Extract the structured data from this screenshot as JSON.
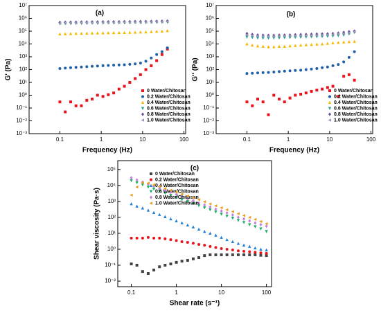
{
  "chart_data": [
    {
      "type": "scatter",
      "title": "(a)",
      "x_label": "Frequency (Hz)",
      "y_label": "G' (Pa)",
      "log_x": true,
      "log_y": true,
      "legend": "lower right",
      "xlim": [
        0.018,
        110
      ],
      "xticks": [
        0.1,
        1,
        10,
        100
      ],
      "ylim": [
        0.001,
        10000000
      ],
      "yticks": [
        {
          "value": 0.001,
          "label": "10⁻³"
        },
        {
          "value": 0.01,
          "label": "10⁻²"
        },
        {
          "value": 0.1,
          "label": "10⁻¹"
        },
        {
          "value": 1,
          "label": "10⁰"
        },
        {
          "value": 10,
          "label": "10¹"
        },
        {
          "value": 100,
          "label": "10²"
        },
        {
          "value": 1000,
          "label": "10³"
        },
        {
          "value": 10000,
          "label": "10⁴"
        },
        {
          "value": 100000,
          "label": "10⁵"
        },
        {
          "value": 1000000,
          "label": "10⁶"
        },
        {
          "value": 10000000,
          "label": "10⁷"
        }
      ],
      "x": [
        0.1,
        0.135,
        0.182,
        0.245,
        0.331,
        0.447,
        0.603,
        0.813,
        1.1,
        1.48,
        2,
        2.69,
        3.63,
        4.9,
        6.61,
        8.91,
        12,
        16.2,
        21.9,
        29.5,
        39.8
      ],
      "series": [
        {
          "name": "0 Water/Chitosan",
          "color": "#e8141b",
          "marker": "square",
          "values": [
            0.3,
            0.05,
            0.3,
            0.15,
            0.15,
            0.4,
            0.5,
            1,
            0.8,
            1.1,
            1.5,
            3,
            5,
            10,
            20,
            40,
            100,
            200,
            500,
            1500,
            4000
          ]
        },
        {
          "name": "0.2 Water/Chitosan",
          "color": "#1f5fa8",
          "marker": "circle",
          "values": [
            120,
            130,
            140,
            150,
            160,
            170,
            180,
            190,
            200,
            210,
            220,
            230,
            240,
            260,
            280,
            320,
            450,
            800,
            1500,
            2500,
            5000
          ]
        },
        {
          "name": "0.4 Water/Chitosan",
          "color": "#f5b800",
          "marker": "triangle-up",
          "values": [
            60000,
            62000,
            64000,
            66000,
            67000,
            68000,
            70000,
            71000,
            72000,
            74000,
            75000,
            77000,
            78000,
            80000,
            82000,
            84000,
            86000,
            90000,
            95000,
            100000,
            110000
          ]
        },
        {
          "name": "0.6 Water/Chitosan",
          "color": "#2a9d8f",
          "marker": "triangle-down",
          "values": [
            380000,
            390000,
            400000,
            400000,
            410000,
            410000,
            420000,
            420000,
            430000,
            430000,
            440000,
            440000,
            450000,
            450000,
            460000,
            460000,
            470000,
            480000,
            490000,
            500000,
            510000
          ]
        },
        {
          "name": "0.8 Water/Chitosan",
          "color": "#6a4c9c",
          "marker": "diamond",
          "values": [
            480000,
            490000,
            500000,
            500000,
            510000,
            510000,
            520000,
            520000,
            530000,
            530000,
            540000,
            540000,
            550000,
            550000,
            560000,
            560000,
            570000,
            580000,
            590000,
            600000,
            620000
          ]
        },
        {
          "name": "1.0 Water/Chitosan",
          "color": "#9a9ab8",
          "marker": "triangle-left",
          "values": [
            420000,
            430000,
            440000,
            440000,
            450000,
            450000,
            460000,
            460000,
            470000,
            470000,
            480000,
            480000,
            490000,
            490000,
            500000,
            500000,
            510000,
            520000,
            530000,
            540000,
            560000
          ]
        }
      ]
    },
    {
      "type": "scatter",
      "title": "(b)",
      "x_label": "Frequency (Hz)",
      "y_label": "G'' (Pa)",
      "log_x": true,
      "log_y": true,
      "legend": "lower right",
      "xlim": [
        0.018,
        110
      ],
      "xticks": [
        0.1,
        1,
        10,
        100
      ],
      "ylim": [
        0.001,
        10000000
      ],
      "yticks": [
        {
          "value": 0.001,
          "label": "10⁻³"
        },
        {
          "value": 0.01,
          "label": "10⁻²"
        },
        {
          "value": 0.1,
          "label": "10⁻¹"
        },
        {
          "value": 1,
          "label": "10⁰"
        },
        {
          "value": 10,
          "label": "10¹"
        },
        {
          "value": 100,
          "label": "10²"
        },
        {
          "value": 1000,
          "label": "10³"
        },
        {
          "value": 10000,
          "label": "10⁴"
        },
        {
          "value": 100000,
          "label": "10⁵"
        },
        {
          "value": 1000000,
          "label": "10⁶"
        },
        {
          "value": 10000000,
          "label": "10⁷"
        }
      ],
      "x": [
        0.1,
        0.135,
        0.182,
        0.245,
        0.331,
        0.447,
        0.603,
        0.813,
        1.1,
        1.48,
        2,
        2.69,
        3.63,
        4.9,
        6.61,
        8.91,
        12,
        16.2,
        21.9,
        29.5,
        39.8
      ],
      "series": [
        {
          "name": "0 Water/Chitosan",
          "color": "#e8141b",
          "marker": "square",
          "values": [
            0.3,
            0.15,
            0.5,
            0.3,
            0.03,
            1,
            0.5,
            0.3,
            0.6,
            1,
            1.2,
            1.5,
            2,
            2.5,
            3,
            4,
            5,
            0.8,
            30,
            40,
            15
          ]
        },
        {
          "name": "0.2 Water/Chitosan",
          "color": "#1f5fa8",
          "marker": "circle",
          "values": [
            50,
            52,
            55,
            58,
            60,
            65,
            70,
            75,
            80,
            85,
            90,
            100,
            110,
            120,
            140,
            160,
            200,
            250,
            400,
            900,
            2500
          ]
        },
        {
          "name": "0.4 Water/Chitosan",
          "color": "#f5b800",
          "marker": "triangle-up",
          "values": [
            10000,
            8000,
            7000,
            6500,
            6000,
            6000,
            6500,
            6500,
            7000,
            7500,
            8000,
            8500,
            9000,
            9500,
            10000,
            11000,
            12000,
            13000,
            14000,
            15000,
            16000
          ]
        },
        {
          "name": "0.6 Water/Chitosan",
          "color": "#2a9d8f",
          "marker": "triangle-down",
          "values": [
            35000,
            32000,
            30000,
            29000,
            29000,
            30000,
            30000,
            31000,
            32000,
            33000,
            34000,
            35000,
            36000,
            37000,
            38000,
            40000,
            42000,
            45000,
            50000,
            60000,
            80000
          ]
        },
        {
          "name": "0.8 Water/Chitosan",
          "color": "#6a4c9c",
          "marker": "diamond",
          "values": [
            65000,
            55000,
            50000,
            48000,
            47000,
            47000,
            48000,
            49000,
            50000,
            52000,
            54000,
            55000,
            57000,
            59000,
            60000,
            62000,
            65000,
            70000,
            80000,
            90000,
            100000
          ]
        },
        {
          "name": "1.0 Water/Chitosan",
          "color": "#9a9ab8",
          "marker": "triangle-left",
          "values": [
            50000,
            45000,
            42000,
            40000,
            40000,
            40000,
            41000,
            42000,
            43000,
            44000,
            45000,
            46000,
            47000,
            48000,
            50000,
            52000,
            55000,
            60000,
            65000,
            75000,
            90000
          ]
        }
      ]
    },
    {
      "type": "scatter",
      "title": "(c)",
      "x_label": "Shear rate (s⁻¹)",
      "y_label": "Shear viscosity (Pa·s)",
      "log_x": true,
      "log_y": true,
      "legend": "upper left",
      "xlim": [
        0.05,
        130
      ],
      "xticks": [
        0.1,
        1,
        10,
        100
      ],
      "ylim": [
        0.0045,
        360000
      ],
      "yticks": [
        {
          "value": 0.01,
          "label": "10⁻²"
        },
        {
          "value": 0.1,
          "label": "10⁻¹"
        },
        {
          "value": 1,
          "label": "10⁰"
        },
        {
          "value": 10,
          "label": "10¹"
        },
        {
          "value": 100,
          "label": "10²"
        },
        {
          "value": 1000,
          "label": "10³"
        },
        {
          "value": 10000,
          "label": "10⁴"
        },
        {
          "value": 100000,
          "label": "10⁵"
        }
      ],
      "x": [
        0.1,
        0.133,
        0.178,
        0.237,
        0.316,
        0.422,
        0.562,
        0.75,
        1,
        1.33,
        1.78,
        2.37,
        3.16,
        4.22,
        5.62,
        7.5,
        10,
        13.3,
        17.8,
        23.7,
        31.6,
        42.2,
        56.2,
        75,
        100
      ],
      "series": [
        {
          "name": "0 Water/Chitosan",
          "color": "#444444",
          "marker": "square",
          "values": [
            0.12,
            0.1,
            0.04,
            0.03,
            0.05,
            0.08,
            0.1,
            0.12,
            0.15,
            0.18,
            0.2,
            0.25,
            0.3,
            0.4,
            0.45,
            0.45,
            0.45,
            0.45,
            0.45,
            0.45,
            0.45,
            0.45,
            0.45,
            0.42,
            0.4
          ]
        },
        {
          "name": "0.2 Water/Chitosan",
          "color": "#e8141b",
          "marker": "circle",
          "values": [
            5,
            5,
            5,
            5.5,
            5,
            5,
            4.5,
            4,
            3.5,
            3,
            2.7,
            2.4,
            2,
            1.8,
            1.5,
            1.3,
            1.1,
            1,
            0.9,
            0.8,
            0.75,
            0.7,
            0.65,
            0.6,
            0.55
          ]
        },
        {
          "name": "0.4 Water/Chitosan",
          "color": "#1f7fd6",
          "marker": "triangle-up",
          "values": [
            700,
            500,
            380,
            280,
            200,
            150,
            110,
            80,
            60,
            45,
            33,
            25,
            18,
            13,
            10,
            7.5,
            5.5,
            4,
            3,
            2.3,
            1.8,
            1.5,
            1.2,
            1,
            0.9
          ]
        },
        {
          "name": "0.6 Water/Chitosan",
          "color": "#18b060",
          "marker": "triangle-down",
          "values": [
            20000,
            15000,
            11000,
            8000,
            6000,
            4500,
            3300,
            2400,
            1800,
            1300,
            1000,
            750,
            550,
            400,
            300,
            220,
            160,
            120,
            90,
            65,
            48,
            35,
            26,
            19,
            13
          ]
        },
        {
          "name": "0.8 Water/Chitosan",
          "color": "#c080e0",
          "marker": "diamond",
          "values": [
            30000,
            22000,
            16000,
            12000,
            9000,
            6500,
            5000,
            3700,
            2700,
            2000,
            1500,
            1100,
            800,
            600,
            450,
            330,
            250,
            190,
            140,
            100,
            80,
            60,
            45,
            35,
            28
          ]
        },
        {
          "name": "1.0 Water/Chitosan",
          "color": "#e8a020",
          "marker": "triangle-left",
          "values": [
            2500,
            8000,
            15000,
            14000,
            11000,
            8500,
            6500,
            5000,
            3800,
            2900,
            2200,
            1700,
            1300,
            950,
            700,
            530,
            400,
            300,
            230,
            170,
            130,
            100,
            75,
            55,
            40
          ]
        }
      ]
    }
  ]
}
